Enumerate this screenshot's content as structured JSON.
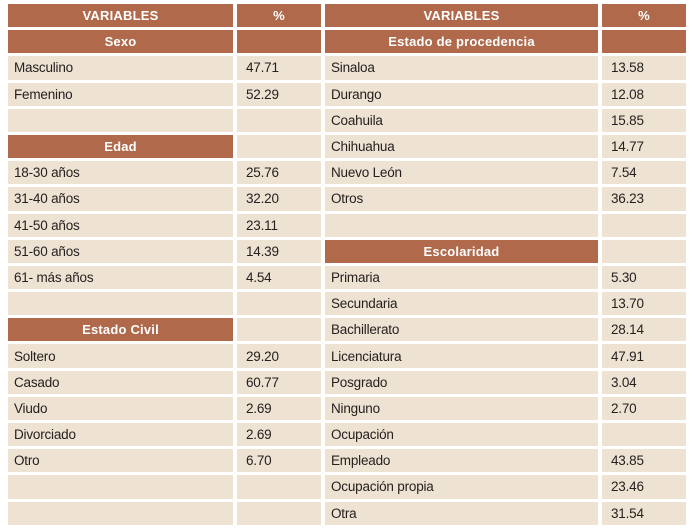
{
  "colors": {
    "header_brown": "#b0694a",
    "row_beige": "#eee2d3",
    "header_text": "#ffffff",
    "body_text": "#26211f",
    "page_background": "#ffffff"
  },
  "tables": [
    {
      "id": "left",
      "rows": [
        {
          "type": "columns",
          "label": "VARIABLES",
          "value": "%"
        },
        {
          "type": "section",
          "label": "Sexo",
          "value": "",
          "value_bg": "brown"
        },
        {
          "type": "data",
          "label": "Masculino",
          "value": "47.71"
        },
        {
          "type": "data",
          "label": "Femenino",
          "value": "52.29"
        },
        {
          "type": "empty",
          "label": "",
          "value": ""
        },
        {
          "type": "section",
          "label": "Edad",
          "value": "",
          "value_bg": "beige"
        },
        {
          "type": "data",
          "label": "18-30 años",
          "value": "25.76"
        },
        {
          "type": "data",
          "label": "31-40 años",
          "value": "32.20"
        },
        {
          "type": "data",
          "label": "41-50 años",
          "value": "23.11"
        },
        {
          "type": "data",
          "label": "51-60 años",
          "value": "14.39"
        },
        {
          "type": "data",
          "label": "61- más años",
          "value": "4.54"
        },
        {
          "type": "empty",
          "label": "",
          "value": ""
        },
        {
          "type": "section",
          "label": "Estado Civil",
          "value": "",
          "value_bg": "beige"
        },
        {
          "type": "data",
          "label": "Soltero",
          "value": "29.20"
        },
        {
          "type": "data",
          "label": "Casado",
          "value": "60.77"
        },
        {
          "type": "data",
          "label": "Viudo",
          "value": "2.69"
        },
        {
          "type": "data",
          "label": "Divorciado",
          "value": "2.69"
        },
        {
          "type": "data",
          "label": "Otro",
          "value": "6.70"
        },
        {
          "type": "empty",
          "label": "",
          "value": ""
        },
        {
          "type": "empty",
          "label": "",
          "value": ""
        }
      ]
    },
    {
      "id": "right",
      "rows": [
        {
          "type": "columns",
          "label": "VARIABLES",
          "value": "%"
        },
        {
          "type": "section",
          "label": "Estado de procedencia",
          "value": "",
          "value_bg": "brown"
        },
        {
          "type": "data",
          "label": "Sinaloa",
          "value": "13.58"
        },
        {
          "type": "data",
          "label": "Durango",
          "value": "12.08"
        },
        {
          "type": "data",
          "label": "Coahuila",
          "value": "15.85"
        },
        {
          "type": "data",
          "label": "Chihuahua",
          "value": "14.77"
        },
        {
          "type": "data",
          "label": "Nuevo León",
          "value": "7.54"
        },
        {
          "type": "data",
          "label": "Otros",
          "value": "36.23"
        },
        {
          "type": "empty",
          "label": "",
          "value": ""
        },
        {
          "type": "section",
          "label": "Escolaridad",
          "value": "",
          "value_bg": "beige"
        },
        {
          "type": "data",
          "label": "Primaria",
          "value": "5.30"
        },
        {
          "type": "data",
          "label": "Secundaria",
          "value": "13.70"
        },
        {
          "type": "data",
          "label": "Bachillerato",
          "value": "28.14"
        },
        {
          "type": "data",
          "label": "Licenciatura",
          "value": "47.91"
        },
        {
          "type": "data",
          "label": "Posgrado",
          "value": "3.04"
        },
        {
          "type": "data",
          "label": "Ninguno",
          "value": "2.70"
        },
        {
          "type": "data",
          "label": "Ocupación",
          "value": ""
        },
        {
          "type": "data",
          "label": "Empleado",
          "value": "43.85"
        },
        {
          "type": "data",
          "label": "Ocupación propia",
          "value": "23.46"
        },
        {
          "type": "data",
          "label": "Otra",
          "value": "31.54"
        }
      ]
    }
  ]
}
